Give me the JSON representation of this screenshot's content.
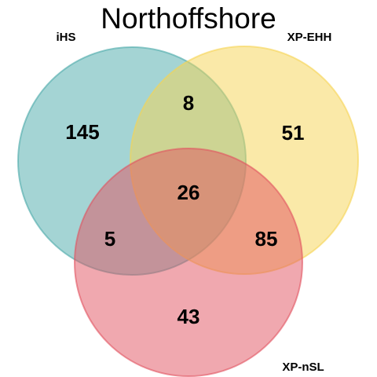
{
  "title": "Northoffshore",
  "sets": [
    {
      "key": "ihs",
      "label": "iHS",
      "color": "#4aa9a9"
    },
    {
      "key": "xpehh",
      "label": "XP-EHH",
      "color": "#f6d451"
    },
    {
      "key": "xpnsl",
      "label": "XP-nSL",
      "color": "#e1525f"
    }
  ],
  "regions": {
    "ihs_only": "145",
    "xpehh_only": "51",
    "xpnsl_only": "43",
    "ihs_xpehh": "8",
    "ihs_xpnsl": "5",
    "xpehh_xpnsl": "85",
    "all_three": "26"
  },
  "chart_data": {
    "type": "venn",
    "title": "Northoffshore",
    "sets": [
      "iHS",
      "XP-EHH",
      "XP-nSL"
    ],
    "intersections": [
      {
        "sets": [
          "iHS"
        ],
        "count": 145
      },
      {
        "sets": [
          "XP-EHH"
        ],
        "count": 51
      },
      {
        "sets": [
          "XP-nSL"
        ],
        "count": 43
      },
      {
        "sets": [
          "iHS",
          "XP-EHH"
        ],
        "count": 8
      },
      {
        "sets": [
          "iHS",
          "XP-nSL"
        ],
        "count": 5
      },
      {
        "sets": [
          "XP-EHH",
          "XP-nSL"
        ],
        "count": 85
      },
      {
        "sets": [
          "iHS",
          "XP-EHH",
          "XP-nSL"
        ],
        "count": 26
      }
    ]
  }
}
